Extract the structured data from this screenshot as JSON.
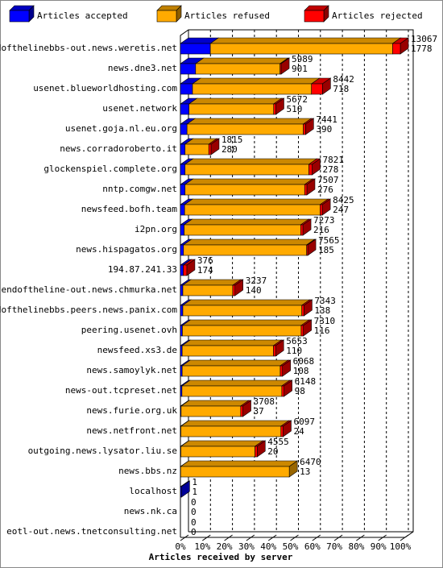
{
  "chart_data": {
    "type": "bar3d-stacked-horizontal",
    "xlabel": "Articles received by server",
    "categories": [
      "endofthelinebbs-out.news.weretis.net",
      "news.dne3.net",
      "usenet.blueworldhosting.com",
      "usenet.network",
      "usenet.goja.nl.eu.org",
      "news.corradoroberto.it",
      "glockenspiel.complete.org",
      "nntp.comgw.net",
      "newsfeed.bofh.team",
      "i2pn.org",
      "news.hispagatos.org",
      "194.87.241.33",
      "endoftheline-out.news.chmurka.net",
      "endofthelinebbs.peers.news.panix.com",
      "peering.usenet.ovh",
      "newsfeed.xs3.de",
      "news.samoylyk.net",
      "news-out.tcpreset.net",
      "news.furie.org.uk",
      "news.netfront.net",
      "outgoing.news.lysator.liu.se",
      "news.bbs.nz",
      "localhost",
      "news.nk.ca",
      "eotl-out.news.tnetconsulting.net"
    ],
    "series": [
      {
        "name": "Articles accepted",
        "color": "#0000ff",
        "values": [
          13.6,
          6.9,
          5.5,
          3.9,
          3.0,
          2.1,
          2.1,
          2.1,
          1.9,
          1.7,
          1.4,
          1.3,
          1.1,
          1.1,
          0.9,
          0.8,
          0.8,
          0.7,
          0.3,
          0.2,
          0.2,
          0.1,
          0.5,
          0,
          0
        ]
      },
      {
        "name": "Articles refused",
        "color": "#ffaa00",
        "values": [
          82.9,
          38.4,
          54.1,
          38.5,
          52.9,
          10.8,
          56.3,
          54.4,
          61.6,
          53.0,
          56.0,
          0,
          22.7,
          54.1,
          54.0,
          41.5,
          44.6,
          45.4,
          27.1,
          45.5,
          33.7,
          49.4,
          0,
          0,
          0
        ]
      },
      {
        "name": "Articles rejected",
        "color": "#ff0000",
        "values": [
          3.5,
          0.5,
          5.0,
          1.0,
          1.0,
          1.0,
          1.5,
          1.0,
          1.0,
          1.0,
          0.5,
          1.6,
          1.0,
          1.0,
          1.0,
          1.0,
          1.0,
          1.0,
          1.0,
          1.0,
          1.0,
          0,
          0,
          0,
          0
        ]
      }
    ],
    "offered": [
      13067,
      5989,
      8442,
      5672,
      7441,
      1815,
      7821,
      7507,
      8425,
      7273,
      7565,
      376,
      3237,
      7343,
      7310,
      5653,
      6068,
      6148,
      3708,
      6097,
      4555,
      6470,
      1,
      0,
      0
    ],
    "accepted": [
      1778,
      901,
      718,
      510,
      390,
      280,
      278,
      276,
      247,
      216,
      185,
      174,
      140,
      138,
      116,
      110,
      108,
      98,
      37,
      24,
      20,
      13,
      1,
      0,
      0
    ],
    "xlim": [
      0,
      100
    ],
    "xticks": [
      {
        "value": 0,
        "label": "0%"
      },
      {
        "value": 10,
        "label": "10%"
      },
      {
        "value": 20,
        "label": "20%"
      },
      {
        "value": 30,
        "label": "30%"
      },
      {
        "value": 40,
        "label": "40%"
      },
      {
        "value": 50,
        "label": "50%"
      },
      {
        "value": 60,
        "label": "60%"
      },
      {
        "value": 70,
        "label": "70%"
      },
      {
        "value": 80,
        "label": "80%"
      },
      {
        "value": 90,
        "label": "90%"
      },
      {
        "value": 100,
        "label": "100%"
      }
    ],
    "grid": true
  }
}
